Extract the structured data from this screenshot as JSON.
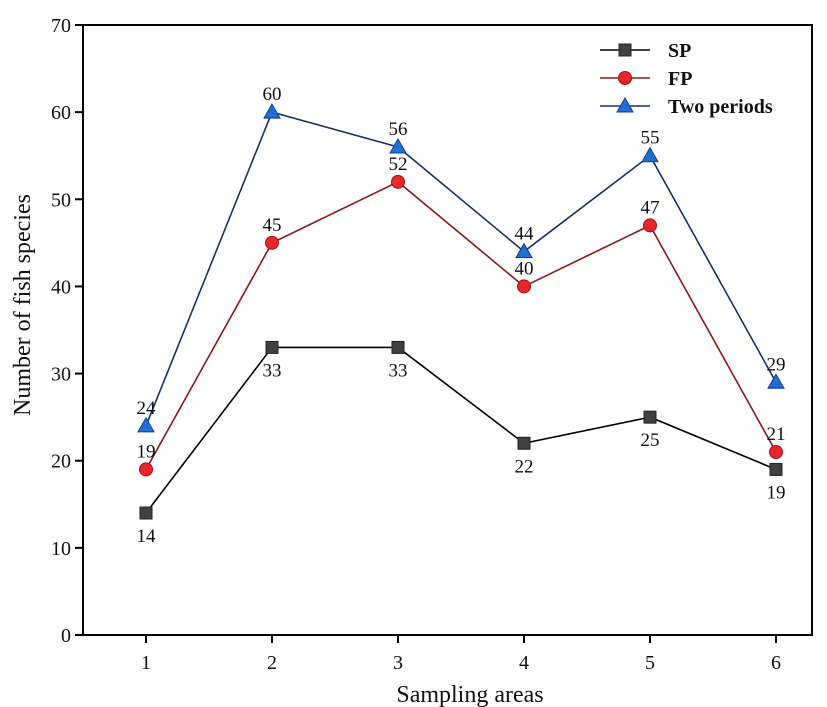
{
  "chart_data": {
    "type": "line",
    "xlabel": "Sampling areas",
    "ylabel": "Number of fish species",
    "categories": [
      "1",
      "2",
      "3",
      "4",
      "5",
      "6"
    ],
    "ylim": [
      0,
      70
    ],
    "yticks": [
      "0",
      "10",
      "20",
      "30",
      "40",
      "50",
      "60",
      "70"
    ],
    "legend_position": "top-right",
    "series": [
      {
        "name": "SP",
        "values": [
          14,
          33,
          33,
          22,
          25,
          19
        ],
        "color": "#000000",
        "marker_color": "#404040",
        "marker": "square",
        "label_side": "below"
      },
      {
        "name": "FP",
        "values": [
          19,
          45,
          52,
          40,
          47,
          21
        ],
        "color": "#8b1a1a",
        "marker_color": "#e8262b",
        "marker": "circle",
        "label_side": "above"
      },
      {
        "name": "Two periods",
        "values": [
          24,
          60,
          56,
          44,
          55,
          29
        ],
        "color": "#1a2f6b",
        "marker_color": "#1f6fd6",
        "marker": "triangle",
        "label_side": "above"
      }
    ]
  }
}
